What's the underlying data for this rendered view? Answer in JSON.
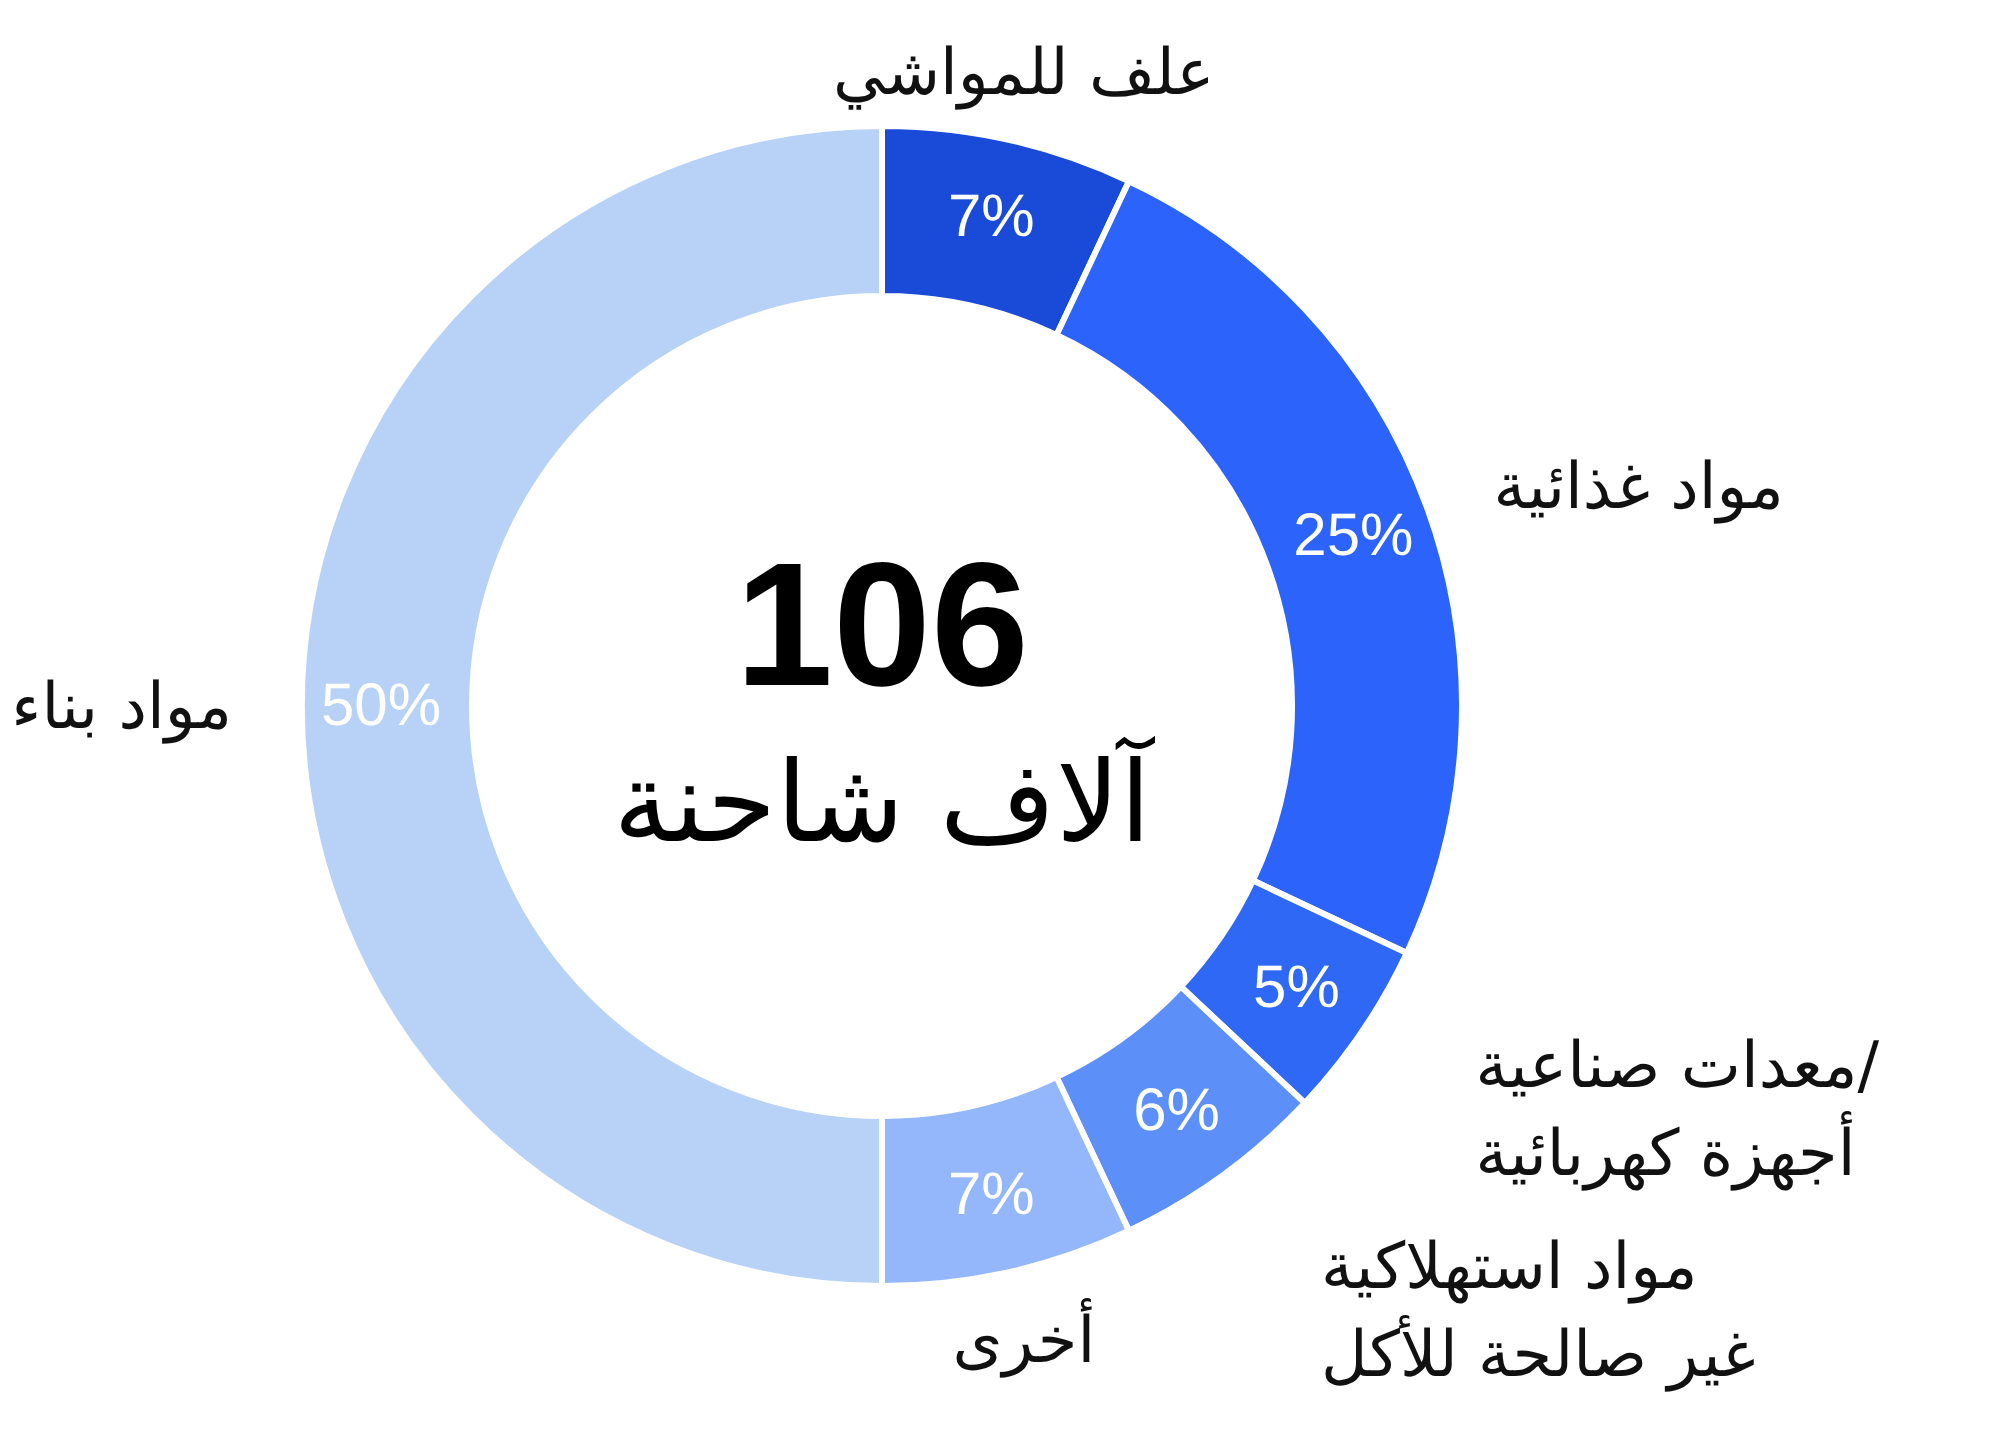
{
  "chart_data": {
    "type": "donut",
    "title": "106",
    "subtitle": "آلاف شاحنة",
    "categories": [
      "علف للمواشي",
      "مواد غذائية",
      "معدات صناعية/\nأجهزة كهربائية",
      "مواد استهلاكية\nغير صالحة للأكل",
      "أخرى",
      "مواد بناء"
    ],
    "values": [
      7,
      25,
      5,
      6,
      7,
      50
    ],
    "colors": [
      "#1a4bd8",
      "#2b63fb",
      "#3068f6",
      "#5c8ff8",
      "#94b6fa",
      "#b8d1f7"
    ],
    "value_labels": [
      "7%",
      "25%",
      "5%",
      "6%",
      "7%",
      "50%"
    ],
    "legend": false
  }
}
